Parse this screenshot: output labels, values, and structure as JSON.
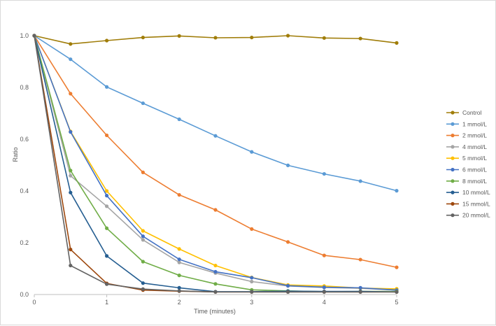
{
  "chart_data": {
    "type": "line",
    "title": "",
    "xlabel": "Time (minutes)",
    "ylabel": "Ratio",
    "xlim": [
      0,
      5
    ],
    "ylim": [
      0,
      1.0
    ],
    "x_ticks": [
      "0",
      "1",
      "2",
      "3",
      "4",
      "5"
    ],
    "y_ticks": [
      "0.0",
      "0.2",
      "0.4",
      "0.6",
      "0.8",
      "1.0"
    ],
    "grid": "none",
    "legend_position": "right",
    "x": [
      0,
      0.5,
      1,
      1.5,
      2,
      2.5,
      3,
      3.5,
      4,
      4.5,
      5
    ],
    "series": [
      {
        "name": "Control",
        "color": "#a07d09",
        "values": [
          1.0,
          0.968,
          0.981,
          0.993,
          0.999,
          0.992,
          0.993,
          1.0,
          0.991,
          0.989,
          0.972
        ]
      },
      {
        "name": "1 mmol/L",
        "color": "#5b9bd5",
        "values": [
          1.0,
          0.909,
          0.802,
          0.739,
          0.677,
          0.613,
          0.551,
          0.499,
          0.466,
          0.438,
          0.401
        ]
      },
      {
        "name": "2 mmol/L",
        "color": "#ed7d31",
        "values": [
          1.0,
          0.776,
          0.615,
          0.472,
          0.385,
          0.327,
          0.253,
          0.203,
          0.151,
          0.135,
          0.105
        ]
      },
      {
        "name": "4 mmol/L",
        "color": "#a5a5a5",
        "values": [
          1.0,
          0.459,
          0.341,
          0.211,
          0.124,
          0.083,
          0.05,
          0.033,
          0.027,
          0.024,
          0.017
        ]
      },
      {
        "name": "5 mmol/L",
        "color": "#ffc000",
        "values": [
          1.0,
          0.63,
          0.4,
          0.246,
          0.176,
          0.112,
          0.066,
          0.037,
          0.033,
          0.025,
          0.022
        ]
      },
      {
        "name": "6 mmol/L",
        "color": "#4472c4",
        "values": [
          1.0,
          0.628,
          0.382,
          0.225,
          0.136,
          0.088,
          0.065,
          0.034,
          0.028,
          0.026,
          0.017
        ]
      },
      {
        "name": "8 mmol/L",
        "color": "#70ad47",
        "values": [
          1.0,
          0.479,
          0.256,
          0.127,
          0.074,
          0.041,
          0.018,
          0.014,
          0.011,
          0.012,
          0.012
        ]
      },
      {
        "name": "10 mmol/L",
        "color": "#255e91",
        "values": [
          1.0,
          0.394,
          0.149,
          0.044,
          0.026,
          0.011,
          0.011,
          0.013,
          0.012,
          0.012,
          0.01
        ]
      },
      {
        "name": "15 mmol/L",
        "color": "#9e480e",
        "values": [
          1.0,
          0.174,
          0.043,
          0.017,
          0.013,
          0.01,
          0.01,
          0.01,
          0.01,
          0.01,
          0.01
        ]
      },
      {
        "name": "20 mmol/L",
        "color": "#636363",
        "values": [
          1.0,
          0.112,
          0.04,
          0.021,
          0.014,
          0.01,
          0.01,
          0.01,
          0.01,
          0.01,
          0.01
        ]
      }
    ]
  },
  "colors": {
    "axis_line": "#bfbfbf",
    "text": "#595959",
    "background": "#ffffff"
  }
}
